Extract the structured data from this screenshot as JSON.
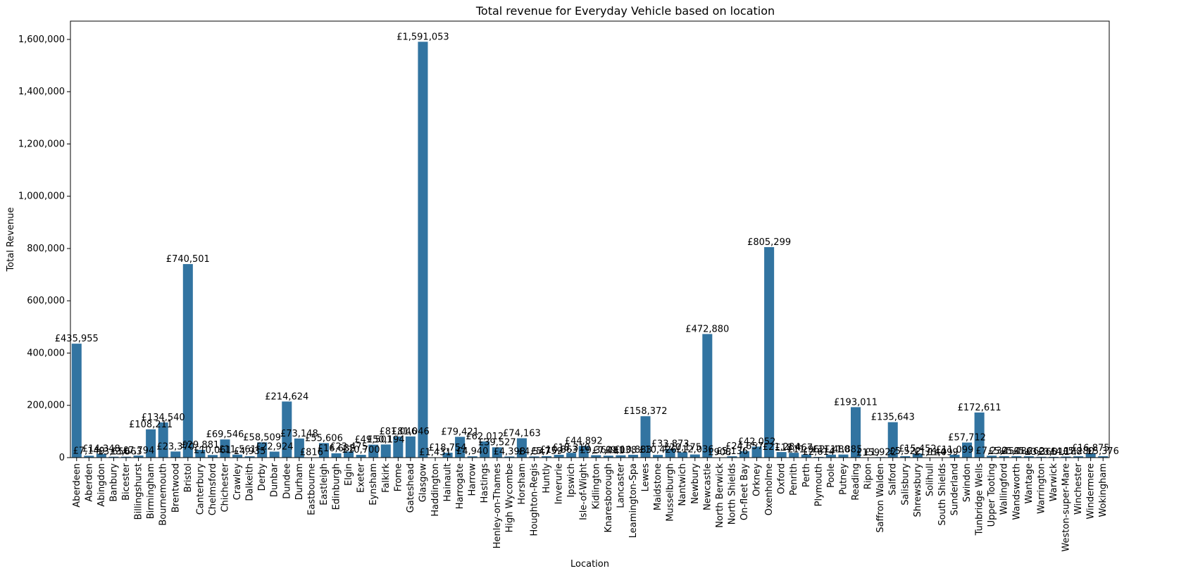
{
  "chart_data": {
    "type": "bar",
    "title": "Total revenue for Everyday Vehicle based on location",
    "xlabel": "Location",
    "ylabel": "Total Revenue",
    "ylim": [
      0,
      1670000
    ],
    "yticks": [
      0,
      200000,
      400000,
      600000,
      800000,
      1000000,
      1200000,
      1400000,
      1600000
    ],
    "ytick_labels": [
      "0",
      "200,000",
      "400,000",
      "600,000",
      "800,000",
      "1,000,000",
      "1,200,000",
      "1,400,000",
      "1,600,000"
    ],
    "bar_color": "#3274a1",
    "categories": [
      "Aberdeen",
      "Aberden",
      "Abingdon",
      "Banbury",
      "Bicester",
      "Billingshurst",
      "Birmingham",
      "Bournemouth",
      "Brentwood",
      "Bristol",
      "Canterbury",
      "Chelmsford",
      "Chichester",
      "Crawley",
      "Dalkeith",
      "Derby",
      "Dunbar",
      "Dundee",
      "Durham",
      "Eastbourne",
      "Eastleigh",
      "Edinburgh",
      "Elgin",
      "Exeter",
      "Eynsham",
      "Falkirk",
      "Frome",
      "Gateshead",
      "Glasgow",
      "Haddington",
      "Hainault",
      "Harrogate",
      "Harrow",
      "Hastings",
      "Henley-on-Thames",
      "High Wycombe",
      "Horsham",
      "Houghton-Regis",
      "Huntly",
      "Inverurie",
      "Ipswich",
      "Isle-of-Wight",
      "Kidlington",
      "Knaresborough",
      "Lancaster",
      "Leamington-Spa",
      "Lewes",
      "Maidstone",
      "Musselburgh",
      "Nantwich",
      "Newbury",
      "Newcastle",
      "North Berwick",
      "North Shields",
      "On-fleet Bay",
      "Orkney",
      "Oxenholme",
      "Oxford",
      "Penrith",
      "Perth",
      "Plymouth",
      "Poole",
      "Putney",
      "Reading",
      "Ripon",
      "Saffron Walden",
      "Salford",
      "Salisbury",
      "Shrewsbury",
      "Solihull",
      "South Shields",
      "Sunderland",
      "Swindon",
      "Tunbridge Wells",
      "Upper Tooting",
      "Wallingford",
      "Wandsworth",
      "Wantage",
      "Warrington",
      "Warwick",
      "Weston-super-Mare",
      "Winchester",
      "Windermere",
      "Wokingham"
    ],
    "values": [
      435955,
      7149,
      14348,
      3650,
      3663,
      7794,
      108211,
      134540,
      23370,
      740501,
      29881,
      10061,
      69546,
      11561,
      4935,
      58509,
      22924,
      214624,
      73148,
      816,
      55606,
      16632,
      23475,
      10700,
      49501,
      50194,
      81046,
      81046,
      1591053,
      1431,
      18754,
      79421,
      4940,
      62012,
      39527,
      4398,
      74163,
      4547,
      5759,
      10863,
      18310,
      44892,
      9361,
      7481,
      9038,
      10883,
      158372,
      10426,
      33873,
      20175,
      12036,
      472880,
      908,
      5136,
      24657,
      42052,
      805299,
      21284,
      18467,
      11962,
      2614,
      11480,
      11885,
      193011,
      159,
      1922,
      135643,
      5522,
      15452,
      1144,
      1099,
      11099,
      57712,
      172611,
      7232,
      5451,
      5486,
      5262,
      3365,
      3011,
      4188,
      5280,
      16875,
      5376
    ],
    "bar_labels": [
      "£435,955",
      "£7,149",
      "£14,348",
      "£3,650",
      "£3,663",
      "£7,794",
      "£108,211",
      "£134,540",
      "£23,370",
      "£740,501",
      "£29,881",
      "£10,061",
      "£69,546",
      "£11,561",
      "£4,935",
      "£58,509",
      "£22,924",
      "£214,624",
      "£73,148",
      "£816",
      "£55,606",
      "£16,632",
      "£23,475",
      "£10,700",
      "£49,501",
      "£50,194",
      "£81,046",
      "£81,046",
      "£1,591,053",
      "£1,431",
      "£18,754",
      "£79,421",
      "£4,940",
      "£62,012",
      "£39,527",
      "£4,398",
      "£74,163",
      "£4,547",
      "£5,759",
      "£10,863",
      "£18,310",
      "£44,892",
      "£9,361",
      "£7,481",
      "£9,038",
      "£10,883",
      "£158,372",
      "£10,426",
      "£33,873",
      "£20,175",
      "£12,036",
      "£472,880",
      "£908",
      "£5,136",
      "£24,657",
      "£42,052",
      "£805,299",
      "£21,284",
      "£18,467",
      "£11,962",
      "£2,614",
      "£11,480",
      "£11,885",
      "£193,011",
      "£159",
      "£1,922",
      "£135,643",
      "£5,522",
      "£15,452",
      "£1,144",
      "£1,099",
      "£11,099",
      "£57,712",
      "£172,611",
      "£7,232",
      "£5,451",
      "£5,486",
      "£5,262",
      "£3,365",
      "£3,011",
      "£4,188",
      "£5,280",
      "£16,875",
      "£5,376"
    ],
    "grid": false,
    "legend": "none"
  }
}
